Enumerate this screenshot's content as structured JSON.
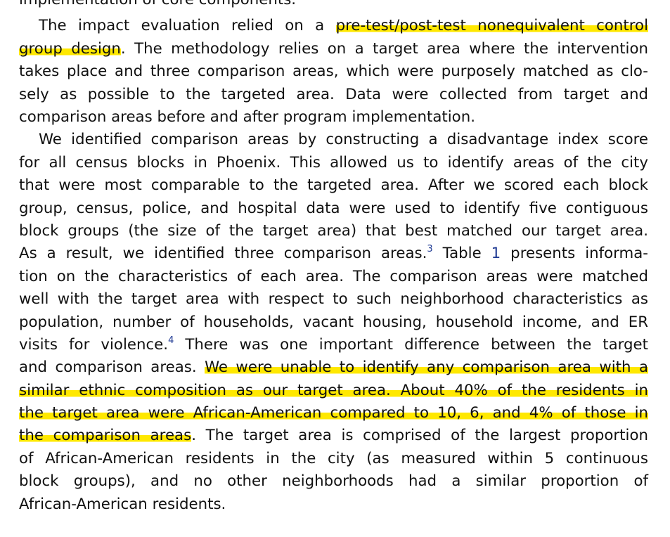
{
  "document": {
    "cut_line": "implementation of core components.",
    "p1": {
      "l1": {
        "a": "The impact evaluation relied on a ",
        "hl": "pre-test/post-test nonequivalent control"
      },
      "l2": {
        "hl": "group design",
        "b": ". The methodology relies on a target area where the intervention"
      },
      "l3": "takes place and three comparison areas, which were purposely matched as clo-",
      "l4": "sely as possible to the targeted area. Data were collected from target and",
      "l5": "comparison areas before and after program implementation."
    },
    "p2": {
      "l1": "We identified comparison areas by constructing a disadvantage index score",
      "l2": "for all census blocks in Phoenix. This allowed us to identify areas of the city",
      "l3": "that were most comparable to the targeted area. After we scored each block",
      "l4": "group, census, police, and hospital data were used to identify five contiguous",
      "l5": "block groups (the size of the target area) that best matched our target area.",
      "l6": {
        "a": "As a result, we identified three comparison areas.",
        "fn": "3",
        "b": " Table ",
        "ref": "1",
        "c": " presents informa-"
      },
      "l7": "tion on the characteristics of each area. The comparison areas were matched",
      "l8": "well with the target area with respect to such neighborhood characteristics as",
      "l9": "population, number of households, vacant housing, household income, and ER",
      "l10": {
        "a": "visits for violence.",
        "fn": "4",
        "b": " There was one important difference between the target"
      },
      "l11": {
        "a": "and comparison areas. ",
        "hl": "We were unable to identify any comparison area with a"
      },
      "l12": {
        "hl": "similar ethnic composition as our target area. About 40% of the residents in"
      },
      "l13": {
        "hl": "the target area were African-American compared to 10, 6, and 4% of those in"
      },
      "l14": {
        "hl": "the comparison areas",
        "b": ". The target area is comprised of the largest proportion"
      },
      "l15": "of African-American residents in the city (as measured within 5 continuous",
      "l16": "block groups), and no other neighborhoods had a similar proportion of",
      "l17": "African-American residents."
    }
  },
  "colors": {
    "highlight": "#ffe800",
    "text": "#111111",
    "link": "#1f3a93"
  }
}
